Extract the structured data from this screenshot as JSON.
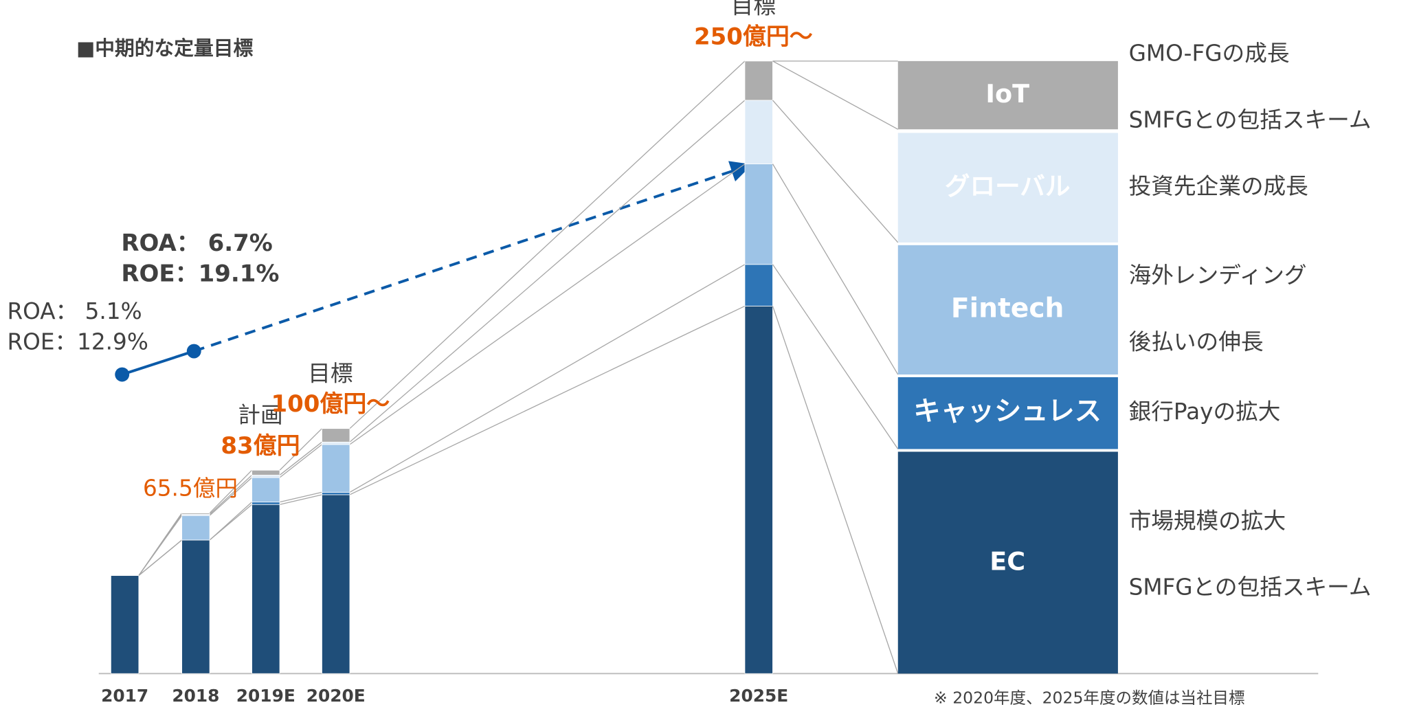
{
  "chart_data": {
    "type": "stacked_bar",
    "title": "■中期的な定量目標",
    "categories": [
      "2017",
      "2018",
      "2019E",
      "2020E",
      "2025E"
    ],
    "series": [
      {
        "name": "EC",
        "color": "#1f4e79",
        "values": [
          40,
          54.5,
          69,
          73,
          150
        ],
        "notes": [
          "市場規模の拡大",
          "SMFGとの包括スキーム"
        ]
      },
      {
        "name": "キャッシュレス",
        "color": "#2e75b6",
        "values": [
          0,
          0,
          1,
          1,
          17
        ],
        "notes": [
          "銀行Payの拡大"
        ]
      },
      {
        "name": "Fintech",
        "color": "#9dc3e6",
        "values": [
          0,
          10,
          10,
          19.5,
          41
        ],
        "notes": [
          "海外レンディング",
          "後払いの伸長"
        ]
      },
      {
        "name": "グローバル",
        "color": "#deebf7",
        "values": [
          0,
          0.5,
          1,
          1,
          26
        ],
        "notes": [
          "投資先企業の成長"
        ]
      },
      {
        "name": "IoT",
        "color": "#adadad",
        "values": [
          0,
          0.5,
          2,
          5.5,
          16
        ],
        "notes": [
          "GMO-FGの成長",
          "SMFGとの包括スキーム"
        ]
      }
    ],
    "total_labels": [
      null,
      "65.5億円",
      "83億円",
      "100億円～",
      "250億円～"
    ],
    "total_captions": [
      null,
      null,
      "計画",
      "目標",
      "目標"
    ],
    "ratio_current": [
      "ROA：  5.1%",
      "ROE：12.9%"
    ],
    "ratio_target": [
      "ROA：  6.7%",
      "ROE：19.1%"
    ],
    "footnote": "※ 2020年度、2025年度の数値は当社目標"
  }
}
